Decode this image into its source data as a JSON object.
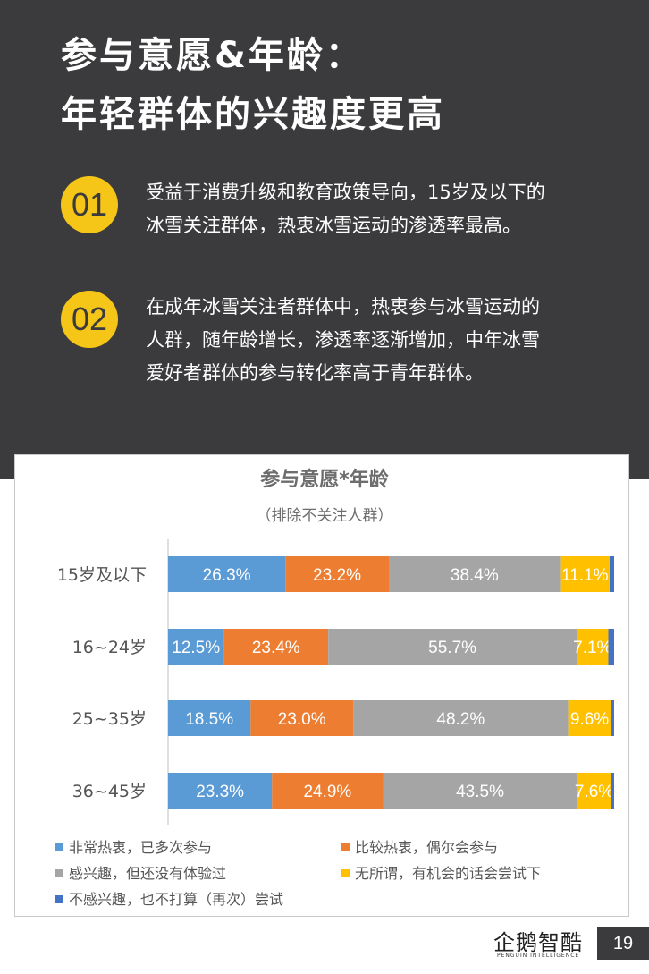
{
  "header": {
    "title_line1": "参与意愿&年龄：",
    "title_line2": "年轻群体的兴趣度更高"
  },
  "points": [
    {
      "number": "01",
      "lines": [
        "受益于消费升级和教育政策导向，15岁及以下的",
        "冰雪关注群体，热衷冰雪运动的渗透率最高。"
      ]
    },
    {
      "number": "02",
      "lines": [
        "在成年冰雪关注者群体中，热衷参与冰雪运动的",
        "人群，随年龄增长，渗透率逐渐增加，中年冰雪",
        "爱好者群体的参与转化率高于青年群体。"
      ]
    }
  ],
  "chart_data": {
    "type": "bar",
    "orientation": "horizontal",
    "stacked": true,
    "percent": true,
    "title": "参与意愿*年龄",
    "subtitle": "（排除不关注人群）",
    "categories": [
      "15岁及以下",
      "16~24岁",
      "25~35岁",
      "36~45岁"
    ],
    "series": [
      {
        "name": "非常热衷，已多次参与",
        "color": "#5b9bd5",
        "values": [
          26.3,
          12.5,
          18.5,
          23.3
        ]
      },
      {
        "name": "比较热衷，偶尔会参与",
        "color": "#ed7d31",
        "values": [
          23.2,
          23.4,
          23.0,
          24.9
        ]
      },
      {
        "name": "感兴趣，但还没有体验过",
        "color": "#a5a5a5",
        "values": [
          38.4,
          55.7,
          48.2,
          43.5
        ]
      },
      {
        "name": "无所谓，有机会的话会尝试下",
        "color": "#ffc000",
        "values": [
          11.1,
          7.1,
          9.6,
          7.6
        ]
      },
      {
        "name": "不感兴趣，也不打算（再次）尝试",
        "color": "#4472c4",
        "values": [
          1.0,
          1.3,
          0.7,
          0.7
        ]
      }
    ],
    "data_labels": [
      [
        "26.3%",
        "23.2%",
        "38.4%",
        "11.1%"
      ],
      [
        "12.5%",
        "23.4%",
        "55.7%",
        "7.1%"
      ],
      [
        "18.5%",
        "23.0%",
        "48.2%",
        "9.6%"
      ],
      [
        "23.3%",
        "24.9%",
        "43.5%",
        "7.6%"
      ]
    ],
    "xlim": [
      0,
      100
    ],
    "legend_position": "bottom",
    "grid": false
  },
  "footer": {
    "logo_text": "企鹅智酷",
    "logo_subtext": "PENGUIN INTELLIGENCE",
    "page_number": "19"
  },
  "colors": {
    "header_bg": "#3b3b3d",
    "accent": "#f5c518"
  }
}
